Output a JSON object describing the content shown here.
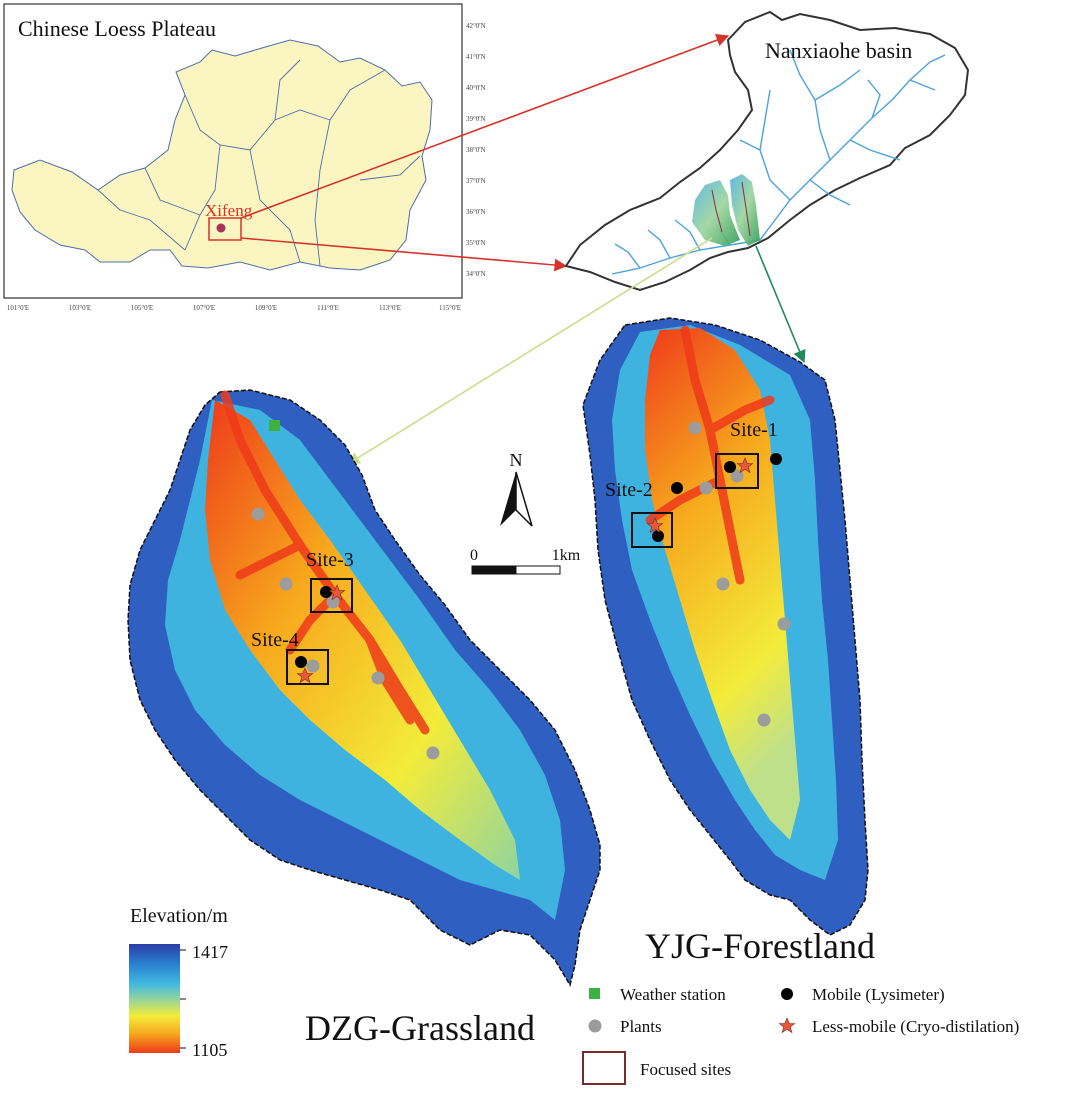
{
  "inset": {
    "title": "Chinese Loess Plateau",
    "city": "Xifeng",
    "lat_ticks": [
      "42°0'N",
      "41°0'N",
      "40°0'N",
      "39°0'N",
      "38°0'N",
      "37°0'N",
      "36°0'N",
      "35°0'N",
      "34°0'N"
    ],
    "lon_ticks": [
      "101°0'E",
      "103°0'E",
      "105°0'E",
      "107°0'E",
      "109°0'E",
      "111°0'E",
      "113°0'E",
      "115°0'E"
    ]
  },
  "basin": {
    "title": "Nanxiaohe basin"
  },
  "catchments": {
    "grassland": "DZG-Grassland",
    "forestland": "YJG-Forestland"
  },
  "sites": {
    "s1": "Site-1",
    "s2": "Site-2",
    "s3": "Site-3",
    "s4": "Site-4"
  },
  "north": "N",
  "scalebar": {
    "start": "0",
    "end": "1km"
  },
  "elevation": {
    "title": "Elevation/m",
    "max": "1417",
    "min": "1105",
    "ramp": [
      "#2b3ea6",
      "#2a7fd0",
      "#3fb7e0",
      "#8fd4a0",
      "#f3ec3a",
      "#f7a91d",
      "#ee3a1a"
    ]
  },
  "legend": {
    "weather": "Weather station",
    "plants": "Plants",
    "mobile": "Mobile (Lysimeter)",
    "less_mobile": "Less-mobile (Cryo-distilation)",
    "focused": "Focused sites"
  },
  "colors": {
    "plateau_fill": "#fbf5c2",
    "arrow_red": "#d6332a",
    "arrow_green": "#1f8a5c",
    "arrow_lime": "#c7df8a",
    "river": "#4aa3d9",
    "weather": "#3cb043",
    "plant": "#9c9c9c",
    "mobile": "#000000",
    "star": "#e8573a"
  }
}
